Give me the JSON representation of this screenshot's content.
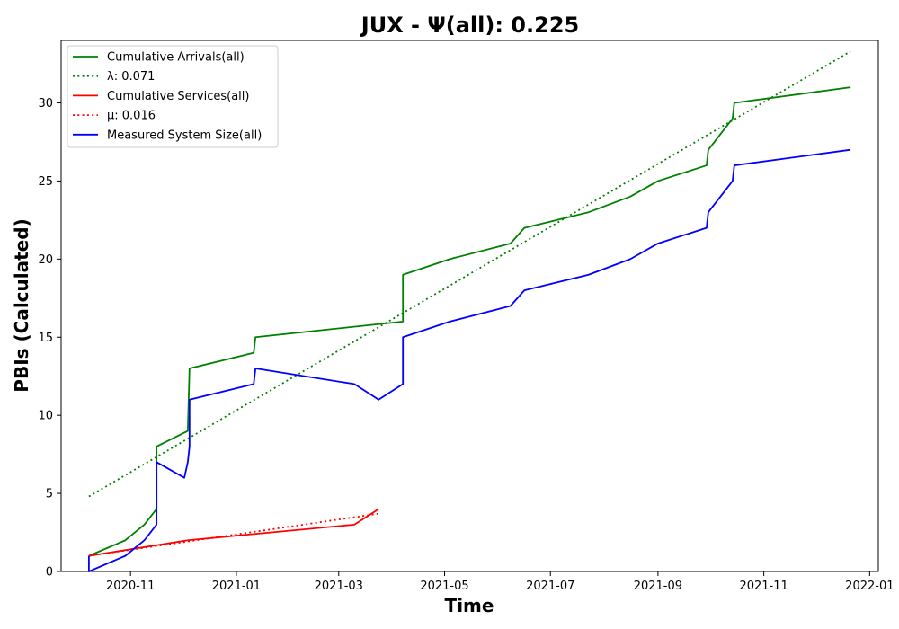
{
  "chart_data": {
    "type": "line",
    "title": "JUX -  Ψ(all): 0.225",
    "xlabel": "Time",
    "ylabel": "PBIs (Calculated)",
    "xlim": [
      "2020-09-22",
      "2022-01-06"
    ],
    "ylim": [
      0,
      34
    ],
    "yticks": [
      0,
      5,
      10,
      15,
      20,
      25,
      30
    ],
    "xticks": [
      "2020-11",
      "2021-01",
      "2021-03",
      "2021-05",
      "2021-07",
      "2021-09",
      "2021-11",
      "2022-01"
    ],
    "grid": false,
    "legend_position": "top-left",
    "series": [
      {
        "name": "Cumulative Arrivals(all)",
        "color": "#008000",
        "style": "solid",
        "points": [
          [
            "2020-10-08",
            1
          ],
          [
            "2020-10-29",
            2
          ],
          [
            "2020-11-09",
            3
          ],
          [
            "2020-11-16",
            4
          ],
          [
            "2020-11-16",
            8
          ],
          [
            "2020-12-04",
            9
          ],
          [
            "2020-12-05",
            13
          ],
          [
            "2021-01-11",
            14
          ],
          [
            "2021-01-12",
            15
          ],
          [
            "2021-04-07",
            16
          ],
          [
            "2021-04-07",
            19
          ],
          [
            "2021-05-04",
            20
          ],
          [
            "2021-06-08",
            21
          ],
          [
            "2021-06-16",
            22
          ],
          [
            "2021-07-23",
            23
          ],
          [
            "2021-08-16",
            24
          ],
          [
            "2021-09-01",
            25
          ],
          [
            "2021-09-29",
            26
          ],
          [
            "2021-09-30",
            27
          ],
          [
            "2021-10-07",
            28
          ],
          [
            "2021-10-14",
            29
          ],
          [
            "2021-10-15",
            30
          ],
          [
            "2021-12-21",
            31
          ]
        ]
      },
      {
        "name": "λ: 0.071",
        "color": "#008000",
        "style": "dotted",
        "points": [
          [
            "2020-10-08",
            4.8
          ],
          [
            "2021-12-21",
            33.3
          ]
        ]
      },
      {
        "name": "Cumulative Services(all)",
        "color": "#ff0000",
        "style": "solid",
        "points": [
          [
            "2020-10-08",
            1
          ],
          [
            "2020-12-04",
            2
          ],
          [
            "2021-03-10",
            3
          ],
          [
            "2021-03-24",
            4
          ]
        ]
      },
      {
        "name": "μ: 0.016",
        "color": "#ff0000",
        "style": "dotted",
        "points": [
          [
            "2020-10-08",
            1
          ],
          [
            "2021-03-24",
            3.7
          ]
        ]
      },
      {
        "name": "Measured System Size(all)",
        "color": "#0000ff",
        "style": "solid",
        "points": [
          [
            "2020-10-08",
            1
          ],
          [
            "2020-10-08",
            0
          ],
          [
            "2020-10-29",
            1
          ],
          [
            "2020-11-09",
            2
          ],
          [
            "2020-11-16",
            3
          ],
          [
            "2020-11-16",
            7
          ],
          [
            "2020-12-02",
            6
          ],
          [
            "2020-12-04",
            7
          ],
          [
            "2020-12-05",
            8
          ],
          [
            "2020-12-05",
            11
          ],
          [
            "2021-01-11",
            12
          ],
          [
            "2021-01-12",
            13
          ],
          [
            "2021-03-10",
            12
          ],
          [
            "2021-03-24",
            11
          ],
          [
            "2021-04-07",
            12
          ],
          [
            "2021-04-07",
            15
          ],
          [
            "2021-05-04",
            16
          ],
          [
            "2021-06-08",
            17
          ],
          [
            "2021-06-16",
            18
          ],
          [
            "2021-07-23",
            19
          ],
          [
            "2021-08-16",
            20
          ],
          [
            "2021-09-01",
            21
          ],
          [
            "2021-09-29",
            22
          ],
          [
            "2021-09-30",
            23
          ],
          [
            "2021-10-07",
            24
          ],
          [
            "2021-10-14",
            25
          ],
          [
            "2021-10-15",
            26
          ],
          [
            "2021-12-21",
            27
          ]
        ]
      }
    ]
  }
}
